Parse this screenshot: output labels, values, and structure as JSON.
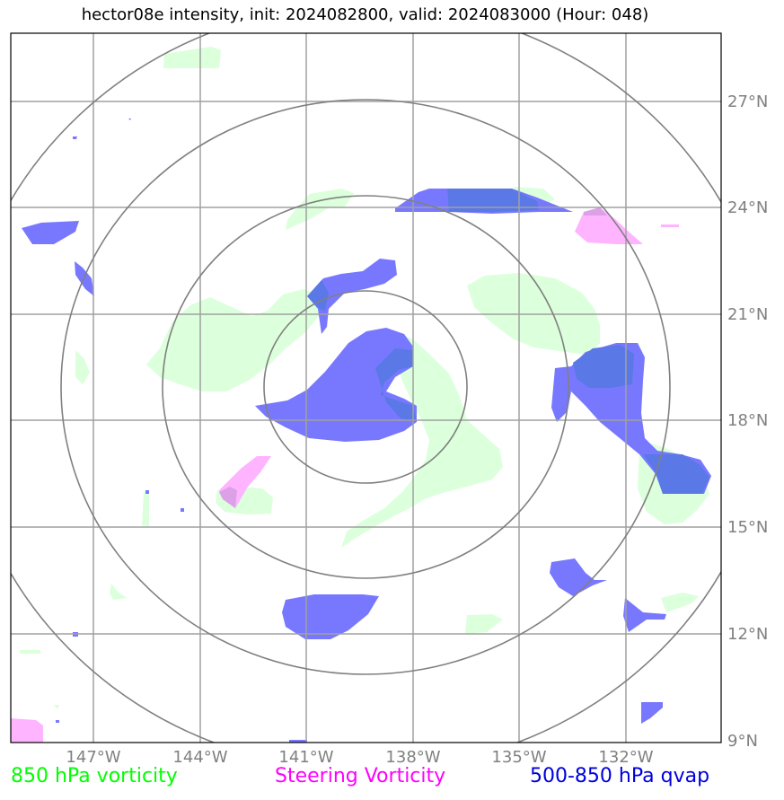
{
  "title": "hector08e intensity, init: 2024082800, valid: 2024083000 (Hour: 048)",
  "map": {
    "longitude_ticks": [
      "147°W",
      "144°W",
      "141°W",
      "138°W",
      "135°W",
      "132°W"
    ],
    "latitude_ticks": [
      "27°N",
      "24°N",
      "21°N",
      "18°N",
      "15°N",
      "12°N",
      "9°N"
    ],
    "gridlines": true,
    "range_rings_count": 4
  },
  "legend": {
    "vorticity_850": "850 hPa vorticity",
    "steering_vorticity": "Steering Vorticity",
    "qvap_500_850": "500-850 hPa qvap"
  },
  "colors": {
    "vorticity_850": "#00ff00",
    "vorticity_850_fill": "#dcffdc",
    "steering_vorticity": "#ff00ff",
    "steering_vorticity_fill": "#ffb4ff",
    "qvap_500_850": "#0000dd",
    "qvap_500_850_fill": "#7878ff",
    "gridline": "#a0a0a0",
    "range_ring": "#808080"
  }
}
